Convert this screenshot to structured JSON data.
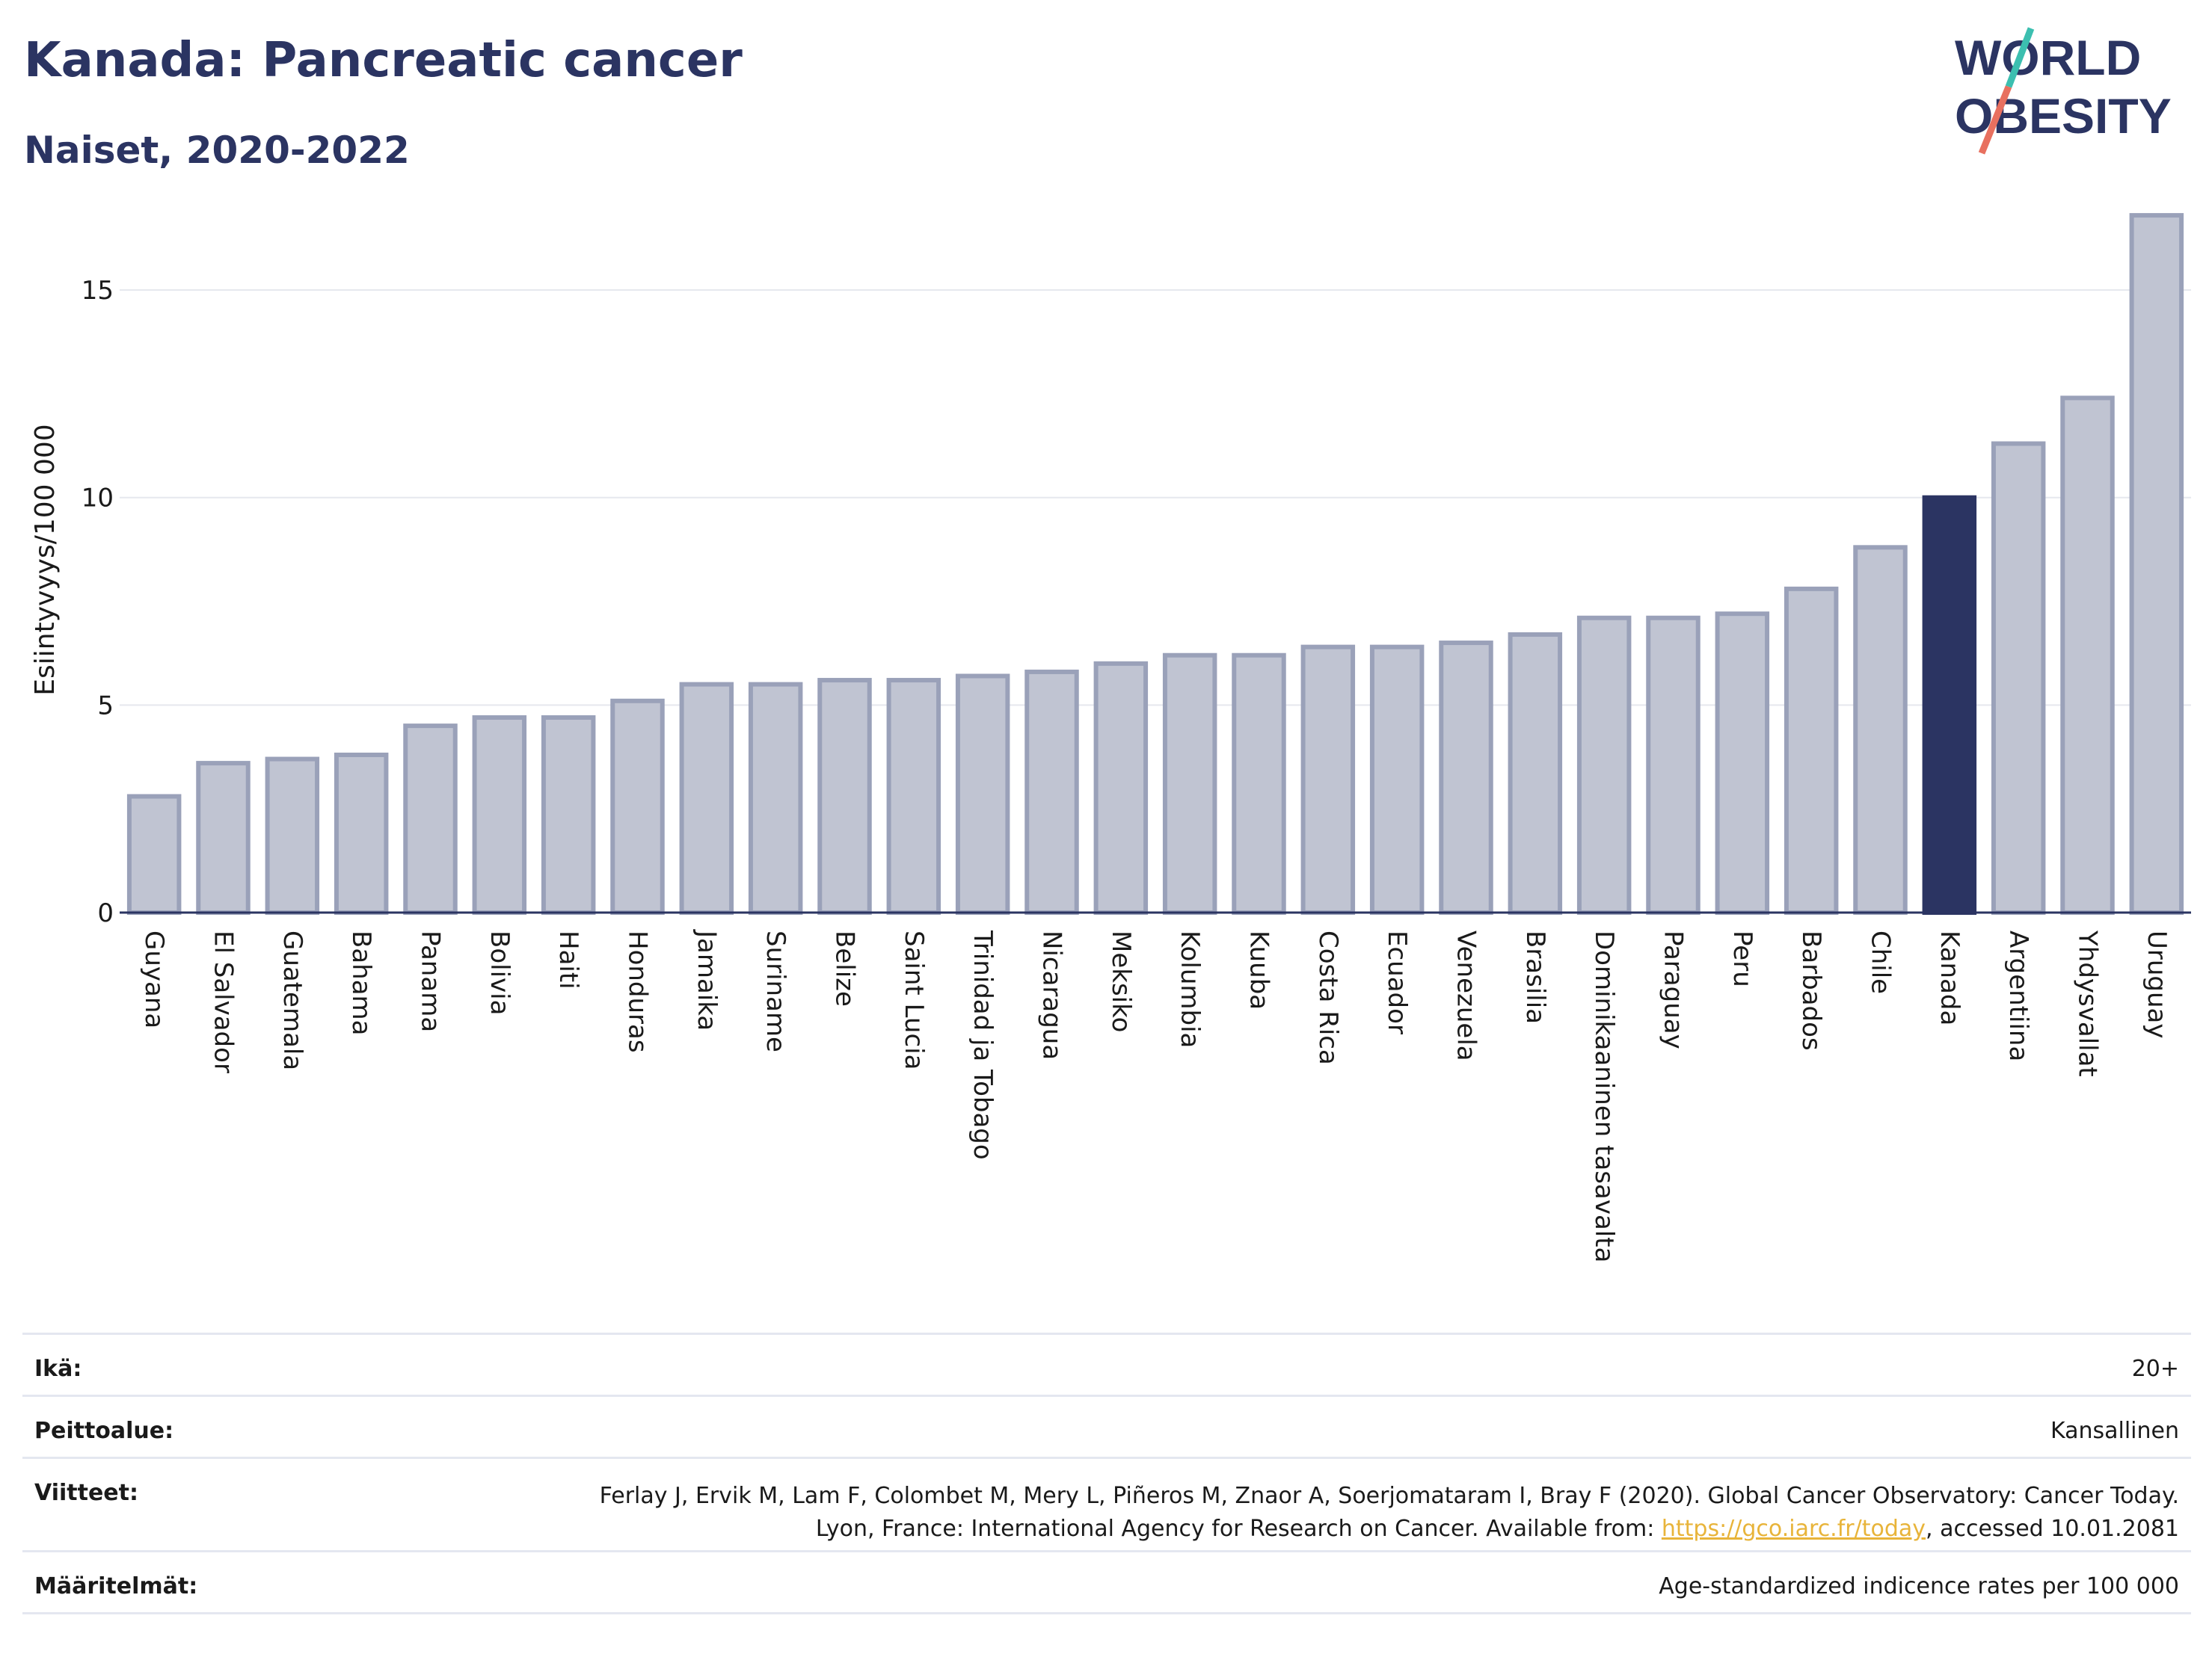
{
  "header": {
    "title": "Kanada: Pancreatic cancer",
    "subtitle": "Naiset, 2020-2022",
    "logo_line1": "WORLD",
    "logo_line2": "OBESITY"
  },
  "colors": {
    "bar": "#c0c4d2",
    "bar_stroke": "#9aa1b9",
    "highlight": "#2b3462",
    "grid": "#e6e8ee",
    "text": "#2b3462",
    "logo_red": "#e8705f",
    "logo_teal": "#3cbfb0"
  },
  "chart_data": {
    "type": "bar",
    "ylabel": "Esiintyvyys/100 000",
    "ylim": [
      0,
      17
    ],
    "yticks": [
      0,
      5,
      10,
      15
    ],
    "grid": true,
    "highlight": "Kanada",
    "categories": [
      "Guyana",
      "El Salvador",
      "Guatemala",
      "Bahama",
      "Panama",
      "Bolivia",
      "Haiti",
      "Honduras",
      "Jamaika",
      "Suriname",
      "Belize",
      "Saint Lucia",
      "Trinidad ja Tobago",
      "Nicaragua",
      "Meksiko",
      "Kolumbia",
      "Kuuba",
      "Costa Rica",
      "Ecuador",
      "Venezuela",
      "Brasilia",
      "Dominikaaninen tasavalta",
      "Paraguay",
      "Peru",
      "Barbados",
      "Chile",
      "Kanada",
      "Argentiina",
      "Yhdysvallat",
      "Uruguay"
    ],
    "values": [
      2.8,
      3.6,
      3.7,
      3.8,
      4.5,
      4.7,
      4.7,
      5.1,
      5.5,
      5.5,
      5.6,
      5.6,
      5.7,
      5.8,
      6.0,
      6.2,
      6.2,
      6.4,
      6.4,
      6.5,
      6.7,
      7.1,
      7.1,
      7.2,
      7.8,
      8.8,
      10.0,
      11.3,
      12.4,
      16.8
    ]
  },
  "meta": {
    "age_label": "Ikä:",
    "age_value": "20+",
    "coverage_label": "Peittoalue:",
    "coverage_value": "Kansallinen",
    "refs_label": "Viitteet:",
    "refs_text_1": "Ferlay J, Ervik M, Lam F, Colombet M, Mery L, Piñeros M, Znaor A, Soerjomataram I, Bray F (2020). Global Cancer Observatory: Cancer Today. Lyon, France: International Agency for Research on Cancer. Available from: ",
    "refs_link": "https://gco.iarc.fr/today",
    "refs_text_2": ", accessed 10.01.2081",
    "defs_label": "Määritelmät:",
    "defs_value": "Age-standardized indicence rates per 100 000"
  }
}
